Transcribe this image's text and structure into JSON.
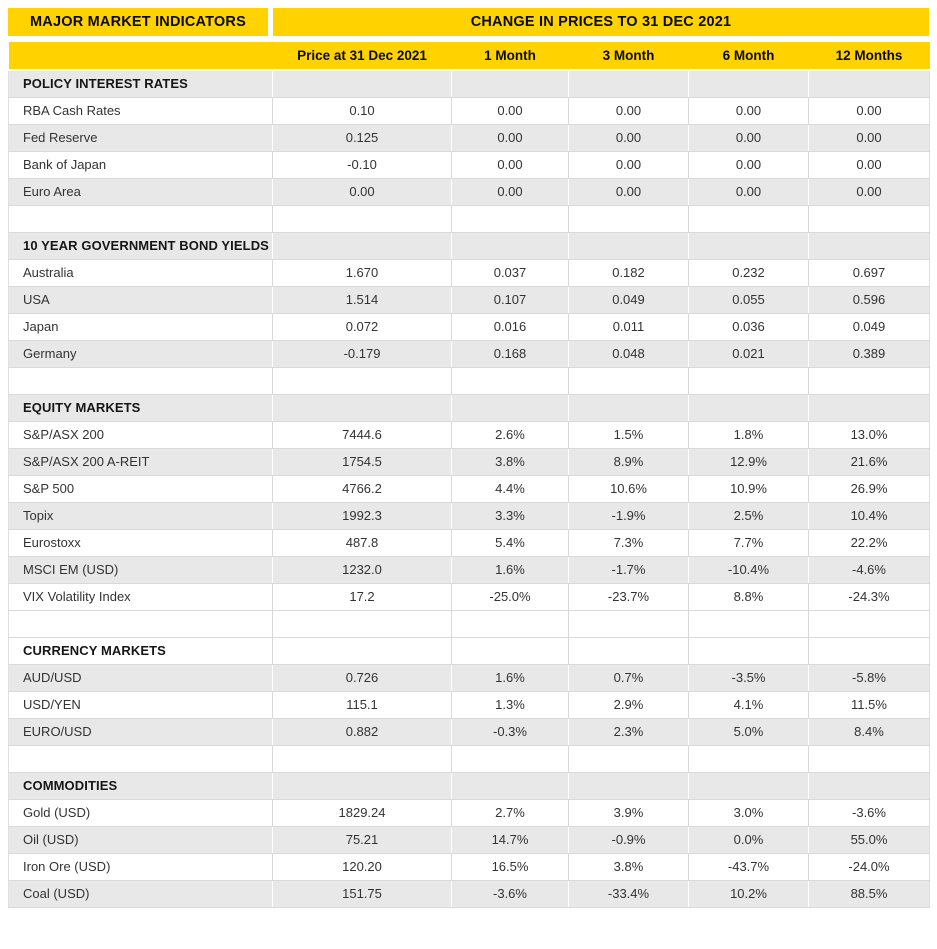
{
  "header": {
    "left_title": "MAJOR MARKET INDICATORS",
    "right_title": "CHANGE IN PRICES TO 31 DEC 2021",
    "columns": [
      "Price at 31 Dec 2021",
      "1 Month",
      "3 Month",
      "6 Month",
      "12 Months"
    ]
  },
  "colors": {
    "banner_yellow": "#FFD200",
    "stripe_gray": "#E8E8E8",
    "border_gray": "#D9D9D9",
    "text": "#333333"
  },
  "rows": [
    {
      "type": "section",
      "label": "POLICY INTEREST RATES",
      "shade": "gray"
    },
    {
      "type": "data",
      "label": "RBA Cash Rates",
      "values": [
        "0.10",
        "0.00",
        "0.00",
        "0.00",
        "0.00"
      ],
      "shade": "white"
    },
    {
      "type": "data",
      "label": "Fed Reserve",
      "values": [
        "0.125",
        "0.00",
        "0.00",
        "0.00",
        "0.00"
      ],
      "shade": "gray"
    },
    {
      "type": "data",
      "label": "Bank of Japan",
      "values": [
        "-0.10",
        "0.00",
        "0.00",
        "0.00",
        "0.00"
      ],
      "shade": "white"
    },
    {
      "type": "data",
      "label": "Euro Area",
      "values": [
        "0.00",
        "0.00",
        "0.00",
        "0.00",
        "0.00"
      ],
      "shade": "gray"
    },
    {
      "type": "spacer",
      "shade": "white"
    },
    {
      "type": "section",
      "label": "10 YEAR GOVERNMENT BOND YIELDS",
      "shade": "gray"
    },
    {
      "type": "data",
      "label": "Australia",
      "values": [
        "1.670",
        "0.037",
        "0.182",
        "0.232",
        "0.697"
      ],
      "shade": "white"
    },
    {
      "type": "data",
      "label": "USA",
      "values": [
        "1.514",
        "0.107",
        "0.049",
        "0.055",
        "0.596"
      ],
      "shade": "gray"
    },
    {
      "type": "data",
      "label": "Japan",
      "values": [
        "0.072",
        "0.016",
        "0.011",
        "0.036",
        "0.049"
      ],
      "shade": "white"
    },
    {
      "type": "data",
      "label": "Germany",
      "values": [
        "-0.179",
        "0.168",
        "0.048",
        "0.021",
        "0.389"
      ],
      "shade": "gray"
    },
    {
      "type": "spacer",
      "shade": "white"
    },
    {
      "type": "section",
      "label": "EQUITY MARKETS",
      "shade": "gray"
    },
    {
      "type": "data",
      "label": "S&P/ASX 200",
      "values": [
        "7444.6",
        "2.6%",
        "1.5%",
        "1.8%",
        "13.0%"
      ],
      "shade": "white"
    },
    {
      "type": "data",
      "label": "S&P/ASX 200 A-REIT",
      "values": [
        "1754.5",
        "3.8%",
        "8.9%",
        "12.9%",
        "21.6%"
      ],
      "shade": "gray"
    },
    {
      "type": "data",
      "label": "S&P 500",
      "values": [
        "4766.2",
        "4.4%",
        "10.6%",
        "10.9%",
        "26.9%"
      ],
      "shade": "white"
    },
    {
      "type": "data",
      "label": "Topix",
      "values": [
        "1992.3",
        "3.3%",
        "-1.9%",
        "2.5%",
        "10.4%"
      ],
      "shade": "gray"
    },
    {
      "type": "data",
      "label": "Eurostoxx",
      "values": [
        "487.8",
        "5.4%",
        "7.3%",
        "7.7%",
        "22.2%"
      ],
      "shade": "white"
    },
    {
      "type": "data",
      "label": "MSCI EM (USD)",
      "values": [
        "1232.0",
        "1.6%",
        "-1.7%",
        "-10.4%",
        "-4.6%"
      ],
      "shade": "gray"
    },
    {
      "type": "data",
      "label": "VIX Volatility Index",
      "values": [
        "17.2",
        "-25.0%",
        "-23.7%",
        "8.8%",
        "-24.3%"
      ],
      "shade": "white"
    },
    {
      "type": "spacer",
      "shade": "white"
    },
    {
      "type": "section",
      "label": "CURRENCY MARKETS",
      "shade": "white"
    },
    {
      "type": "data",
      "label": "AUD/USD",
      "values": [
        "0.726",
        "1.6%",
        "0.7%",
        "-3.5%",
        "-5.8%"
      ],
      "shade": "gray"
    },
    {
      "type": "data",
      "label": "USD/YEN",
      "values": [
        "115.1",
        "1.3%",
        "2.9%",
        "4.1%",
        "11.5%"
      ],
      "shade": "white"
    },
    {
      "type": "data",
      "label": "EURO/USD",
      "values": [
        "0.882",
        "-0.3%",
        "2.3%",
        "5.0%",
        "8.4%"
      ],
      "shade": "gray"
    },
    {
      "type": "spacer",
      "shade": "white"
    },
    {
      "type": "section",
      "label": "COMMODITIES",
      "shade": "gray"
    },
    {
      "type": "data",
      "label": "Gold (USD)",
      "values": [
        "1829.24",
        "2.7%",
        "3.9%",
        "3.0%",
        "-3.6%"
      ],
      "shade": "white"
    },
    {
      "type": "data",
      "label": "Oil (USD)",
      "values": [
        "75.21",
        "14.7%",
        "-0.9%",
        "0.0%",
        "55.0%"
      ],
      "shade": "gray"
    },
    {
      "type": "data",
      "label": "Iron Ore (USD)",
      "values": [
        "120.20",
        "16.5%",
        "3.8%",
        "-43.7%",
        "-24.0%"
      ],
      "shade": "white"
    },
    {
      "type": "data",
      "label": "Coal (USD)",
      "values": [
        "151.75",
        "-3.6%",
        "-33.4%",
        "10.2%",
        "88.5%"
      ],
      "shade": "gray"
    }
  ]
}
